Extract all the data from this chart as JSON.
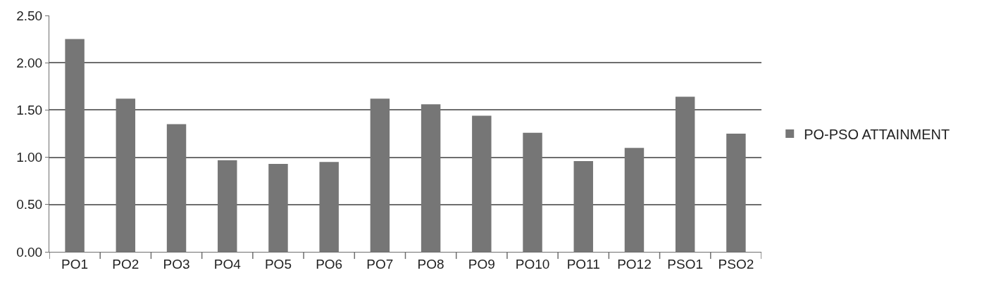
{
  "chart_data": {
    "type": "bar",
    "categories": [
      "PO1",
      "PO2",
      "PO3",
      "PO4",
      "PO5",
      "PO6",
      "PO7",
      "PO8",
      "PO9",
      "PO10",
      "PO11",
      "PO12",
      "PSO1",
      "PSO2"
    ],
    "series": [
      {
        "name": "PO-PSO ATTAINMENT",
        "color": "#767676",
        "values": [
          2.25,
          1.62,
          1.35,
          0.97,
          0.93,
          0.95,
          1.62,
          1.56,
          1.44,
          1.26,
          0.96,
          1.1,
          1.64,
          1.25
        ]
      }
    ],
    "ylim": [
      0,
      2.5
    ],
    "yticks": [
      {
        "value": 0,
        "label": "0.00"
      },
      {
        "value": 0.5,
        "label": "0.50"
      },
      {
        "value": 1,
        "label": "1.00"
      },
      {
        "value": 1.5,
        "label": "1.50"
      },
      {
        "value": 2,
        "label": "2.00"
      },
      {
        "value": 2.5,
        "label": "2.50"
      }
    ],
    "grid": "y",
    "legend": "right"
  }
}
